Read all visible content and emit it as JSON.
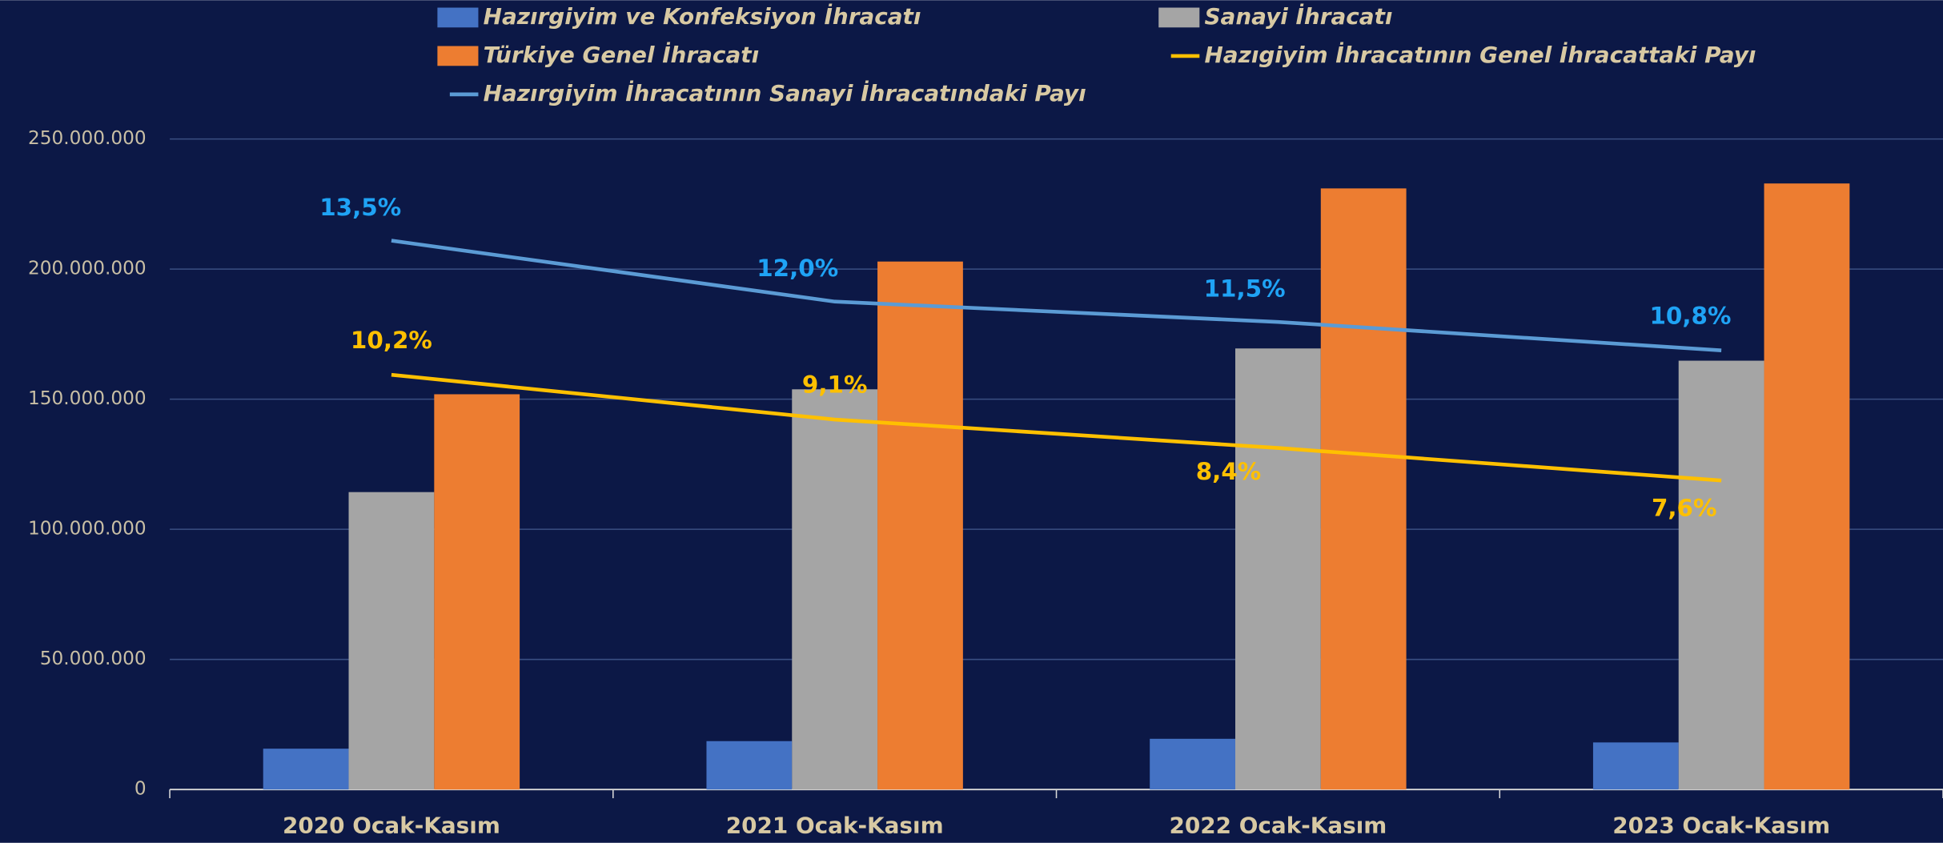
{
  "chart_data": {
    "type": "bar",
    "categories": [
      "2020 Ocak-Kasım",
      "2021 Ocak-Kasım",
      "2022 Ocak-Kasım",
      "2023 Ocak-Kasım"
    ],
    "series": [
      {
        "name": "Hazırgiyim ve Konfeksiyon İhracatı",
        "color": "#4472c4",
        "values": [
          15700000,
          18600000,
          19500000,
          18100000
        ]
      },
      {
        "name": "Sanayi İhracatı",
        "color": "#a5a5a5",
        "values": [
          114300000,
          153800000,
          169500000,
          164800000
        ]
      },
      {
        "name": "Türkiye Genel İhracatı",
        "color": "#ed7d31",
        "values": [
          151900000,
          202900000,
          231000000,
          232900000
        ]
      },
      {
        "name": "Hazıgiyim İhracatının Genel İhracattaki Payı",
        "color": "#ffc000",
        "type": "line",
        "axis": "y2",
        "label_color": "#ffc000",
        "values": [
          10.2,
          9.1,
          8.4,
          7.6
        ],
        "value_labels": [
          "10,2%",
          "9,1%",
          "8,4%",
          "7,6%"
        ]
      },
      {
        "name": "Hazırgiyim İhracatının Sanayi İhracatındaki Payı",
        "color": "#5b9bd5",
        "type": "line",
        "axis": "y2",
        "label_color": "#1fa3f5",
        "values": [
          13.5,
          12.0,
          11.5,
          10.8
        ],
        "value_labels": [
          "13,5%",
          "12,0%",
          "11,5%",
          "10,8%"
        ]
      }
    ],
    "ylim": [
      0,
      250000000
    ],
    "yticks": [
      0,
      {
        "value": 50000000,
        "label": "50.000.000"
      },
      {
        "value": 100000000,
        "label": "100.000.000"
      },
      {
        "value": 150000000,
        "label": "150.000.000"
      },
      {
        "value": 200000000,
        "label": "200.000.000"
      },
      {
        "value": 250000000,
        "label": "250.000.000"
      }
    ],
    "y2lim": [
      0,
      16
    ],
    "grid": true,
    "legend": "top",
    "background": "#0c1846"
  }
}
